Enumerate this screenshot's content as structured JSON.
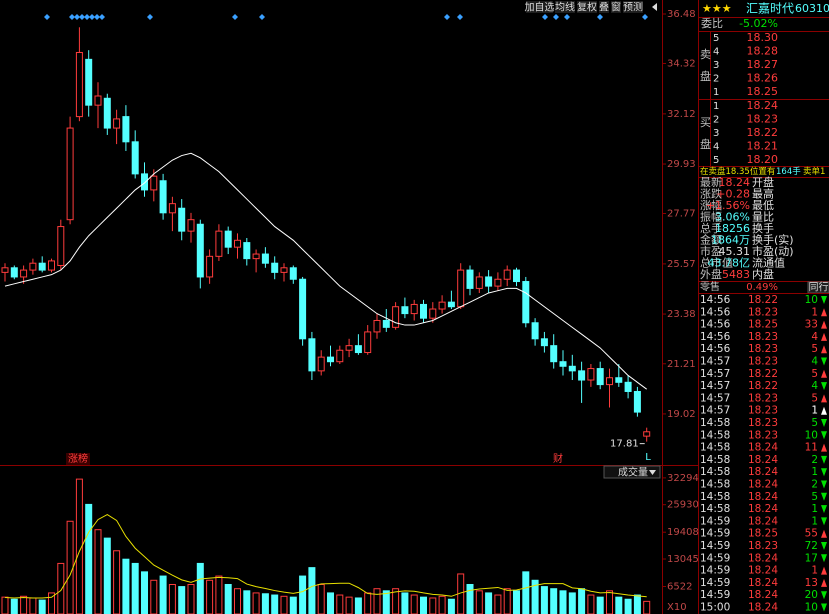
{
  "toolbar": [
    "加自选",
    "均线",
    "复权",
    "叠",
    "窗",
    "预测"
  ],
  "chart_data": {
    "type": "candlestick",
    "ylim": [
      16.79,
      36.48
    ],
    "yticks": [
      19.02,
      21.21,
      23.38,
      25.57,
      27.77,
      29.93,
      32.12,
      34.32,
      36.48
    ],
    "up_color": "#ff3c3c",
    "down_color": "#54ffff",
    "ohlc": [
      [
        25.2,
        25.6,
        24.8,
        25.4
      ],
      [
        25.4,
        25.5,
        24.9,
        25.0
      ],
      [
        25.0,
        25.5,
        24.7,
        25.3
      ],
      [
        25.3,
        25.8,
        25.1,
        25.6
      ],
      [
        25.6,
        25.9,
        25.2,
        25.3
      ],
      [
        25.3,
        25.8,
        25.2,
        25.7
      ],
      [
        25.5,
        27.5,
        25.3,
        27.2
      ],
      [
        27.5,
        32.0,
        27.3,
        31.5
      ],
      [
        32.0,
        35.9,
        31.8,
        34.8
      ],
      [
        34.5,
        34.9,
        32.0,
        32.5
      ],
      [
        32.5,
        33.5,
        31.5,
        32.9
      ],
      [
        32.8,
        33.0,
        31.2,
        31.5
      ],
      [
        31.5,
        32.3,
        30.8,
        31.9
      ],
      [
        32.0,
        32.5,
        30.5,
        30.9
      ],
      [
        30.9,
        31.4,
        29.3,
        29.5
      ],
      [
        29.5,
        30.0,
        28.5,
        28.8
      ],
      [
        28.8,
        29.7,
        28.3,
        29.4
      ],
      [
        29.2,
        29.5,
        27.5,
        27.8
      ],
      [
        27.8,
        28.5,
        27.0,
        28.2
      ],
      [
        28.0,
        28.4,
        26.6,
        27.0
      ],
      [
        27.0,
        27.8,
        26.5,
        27.5
      ],
      [
        27.3,
        27.5,
        24.5,
        25.0
      ],
      [
        25.0,
        26.2,
        24.7,
        25.9
      ],
      [
        25.9,
        27.3,
        25.7,
        27.0
      ],
      [
        27.0,
        27.2,
        26.0,
        26.3
      ],
      [
        26.3,
        26.9,
        25.8,
        26.6
      ],
      [
        26.5,
        26.7,
        25.5,
        25.8
      ],
      [
        25.8,
        26.2,
        25.2,
        26.0
      ],
      [
        26.0,
        26.3,
        25.4,
        25.6
      ],
      [
        25.6,
        25.9,
        24.9,
        25.2
      ],
      [
        25.2,
        25.6,
        24.8,
        25.4
      ],
      [
        25.4,
        25.5,
        24.7,
        24.9
      ],
      [
        24.9,
        25.0,
        22.0,
        22.3
      ],
      [
        22.3,
        22.6,
        20.5,
        20.9
      ],
      [
        20.9,
        21.8,
        20.7,
        21.5
      ],
      [
        21.5,
        22.0,
        21.1,
        21.3
      ],
      [
        21.3,
        22.0,
        21.2,
        21.8
      ],
      [
        21.8,
        22.3,
        21.5,
        22.0
      ],
      [
        22.0,
        22.5,
        21.6,
        21.7
      ],
      [
        21.7,
        22.9,
        21.6,
        22.6
      ],
      [
        22.6,
        23.4,
        22.3,
        23.1
      ],
      [
        23.1,
        23.6,
        22.6,
        22.8
      ],
      [
        22.8,
        23.9,
        22.7,
        23.7
      ],
      [
        23.7,
        24.1,
        23.2,
        23.4
      ],
      [
        23.4,
        24.0,
        23.1,
        23.8
      ],
      [
        23.8,
        24.0,
        23.0,
        23.2
      ],
      [
        23.2,
        23.9,
        23.0,
        23.6
      ],
      [
        23.6,
        24.2,
        23.4,
        23.9
      ],
      [
        23.9,
        24.4,
        23.6,
        23.7
      ],
      [
        23.7,
        25.6,
        23.6,
        25.3
      ],
      [
        25.3,
        25.5,
        24.2,
        24.5
      ],
      [
        24.5,
        25.2,
        24.3,
        25.0
      ],
      [
        25.0,
        25.3,
        24.3,
        24.6
      ],
      [
        24.6,
        25.2,
        24.4,
        24.9
      ],
      [
        24.9,
        25.5,
        24.6,
        25.3
      ],
      [
        25.3,
        25.4,
        24.6,
        24.8
      ],
      [
        24.8,
        25.0,
        22.8,
        23.0
      ],
      [
        23.0,
        23.2,
        22.0,
        22.3
      ],
      [
        22.3,
        22.6,
        21.7,
        22.0
      ],
      [
        22.0,
        22.5,
        21.0,
        21.3
      ],
      [
        21.3,
        21.8,
        20.7,
        21.1
      ],
      [
        21.1,
        21.6,
        20.5,
        20.9
      ],
      [
        20.9,
        21.3,
        19.5,
        20.5
      ],
      [
        20.5,
        21.2,
        20.2,
        21.0
      ],
      [
        21.0,
        21.3,
        20.1,
        20.3
      ],
      [
        20.3,
        21.0,
        19.3,
        20.6
      ],
      [
        20.6,
        21.2,
        20.2,
        20.4
      ],
      [
        20.4,
        20.7,
        19.7,
        20.0
      ],
      [
        20.0,
        20.2,
        18.9,
        19.1
      ],
      [
        18.05,
        18.42,
        17.81,
        18.24
      ]
    ],
    "ma": {
      "color": "#ffffff",
      "values": [
        24.6,
        24.7,
        24.8,
        24.9,
        25.0,
        25.1,
        25.3,
        25.7,
        26.3,
        26.8,
        27.2,
        27.6,
        28.0,
        28.4,
        28.8,
        29.1,
        29.5,
        29.8,
        30.1,
        30.3,
        30.4,
        30.2,
        29.9,
        29.6,
        29.2,
        28.8,
        28.4,
        28.0,
        27.6,
        27.2,
        26.9,
        26.6,
        26.2,
        25.8,
        25.4,
        25.0,
        24.6,
        24.3,
        24.0,
        23.7,
        23.4,
        23.2,
        23.0,
        22.9,
        22.9,
        23.0,
        23.1,
        23.3,
        23.5,
        23.7,
        23.9,
        24.1,
        24.3,
        24.4,
        24.5,
        24.5,
        24.3,
        24.0,
        23.7,
        23.4,
        23.1,
        22.8,
        22.5,
        22.2,
        21.9,
        21.5,
        21.1,
        20.7,
        20.4,
        20.1
      ]
    },
    "low_label": 17.81,
    "annotations": [
      "涨榜",
      "财",
      "L"
    ],
    "volume": {
      "title": "成交量",
      "ylim": [
        0,
        34400
      ],
      "yticks": [
        6522,
        13045,
        19408,
        25930,
        32294
      ],
      "unit_label": "X10",
      "values": [
        4000,
        3500,
        4200,
        3800,
        3300,
        5000,
        12000,
        22000,
        32000,
        26000,
        20000,
        18000,
        15000,
        13000,
        12000,
        10000,
        8000,
        9000,
        7000,
        6500,
        7000,
        12000,
        8000,
        9000,
        7000,
        6000,
        5500,
        5000,
        4800,
        4500,
        4200,
        4000,
        9000,
        11000,
        7000,
        5000,
        4500,
        4000,
        3800,
        5000,
        6000,
        5500,
        6000,
        5000,
        4500,
        4000,
        3800,
        4200,
        3500,
        9500,
        7000,
        5500,
        5000,
        4500,
        6000,
        5500,
        10000,
        8000,
        6500,
        6000,
        5500,
        5000,
        6000,
        4500,
        4000,
        5500,
        4000,
        3500,
        4500,
        3000
      ],
      "ma": {
        "color": "#e8e000",
        "values": [
          3900,
          3800,
          3900,
          3800,
          3800,
          3960,
          5560,
          9260,
          14860,
          19400,
          22400,
          23600,
          22200,
          18400,
          15600,
          13600,
          11600,
          10400,
          9200,
          8100,
          7500,
          8300,
          8500,
          8700,
          8600,
          8400,
          7100,
          6500,
          6060,
          5560,
          5200,
          4900,
          5300,
          6540,
          7140,
          7200,
          7300,
          7300,
          6260,
          4860,
          4660,
          4860,
          5260,
          5500,
          5400,
          5000,
          4660,
          4500,
          4200,
          5000,
          5600,
          5940,
          6100,
          6300,
          5600,
          5700,
          6200,
          6800,
          7200,
          7200,
          7200,
          6200,
          6000,
          5400,
          5000,
          5100,
          4800,
          4500,
          4300,
          4100
        ]
      }
    }
  },
  "quote": {
    "stars": "★★★",
    "name": "汇嘉时代",
    "code": "603101",
    "ratio_label": "委比",
    "ratio": "-5.02%",
    "sell_label": [
      "卖",
      "盘"
    ],
    "buy_label": [
      "买",
      "盘"
    ],
    "sell": [
      {
        "level": 5,
        "price": "18.30"
      },
      {
        "level": 4,
        "price": "18.28"
      },
      {
        "level": 3,
        "price": "18.27"
      },
      {
        "level": 2,
        "price": "18.26"
      },
      {
        "level": 1,
        "price": "18.25"
      }
    ],
    "buy": [
      {
        "level": 1,
        "price": "18.24"
      },
      {
        "level": 2,
        "price": "18.23"
      },
      {
        "level": 3,
        "price": "18.22"
      },
      {
        "level": 4,
        "price": "18.21"
      },
      {
        "level": 5,
        "price": "18.20"
      }
    ],
    "notice": "在卖盘18.35位置有",
    "notice_qty": "164手",
    "notice_tail": "卖单1",
    "stats": [
      {
        "label": "最新",
        "value": "18.24",
        "tag": "开盘",
        "color": "#ff3c3c"
      },
      {
        "label": "涨跌",
        "value": "+0.28",
        "tag": "最高",
        "color": "#ff3c3c"
      },
      {
        "label": "涨幅",
        "value": "+1.56%",
        "tag": "最低",
        "color": "#ff3c3c"
      },
      {
        "label": "振幅",
        "value": "3.06%",
        "tag": "量比",
        "color": "#54ffff"
      },
      {
        "label": "总手",
        "value": "18256",
        "tag": "换手",
        "color": "#54ffff"
      },
      {
        "label": "金额",
        "value": "1864万",
        "tag": "换手(实)",
        "color": "#54ffff"
      },
      {
        "label": "市盈",
        "value": "45.31",
        "tag": "市盈(动)",
        "color": "#e0e0e0"
      },
      {
        "label": "总市值",
        "value": "43.78亿",
        "tag": "流通值",
        "color": "#54ffff"
      },
      {
        "label": "外盘",
        "value": "5483",
        "tag": "内盘",
        "color": "#ff3c3c"
      }
    ],
    "retail_label": "零售",
    "retail": "0.49%",
    "peer": "同行",
    "ticks": [
      {
        "time": "14:56",
        "price": "18.22",
        "vol": 10,
        "dir": "down"
      },
      {
        "time": "14:56",
        "price": "18.23",
        "vol": 1,
        "dir": "up"
      },
      {
        "time": "14:56",
        "price": "18.25",
        "vol": 33,
        "dir": "up"
      },
      {
        "time": "14:56",
        "price": "18.23",
        "vol": 4,
        "dir": "up"
      },
      {
        "time": "14:56",
        "price": "18.23",
        "vol": 5,
        "dir": "up"
      },
      {
        "time": "14:57",
        "price": "18.23",
        "vol": 4,
        "dir": "down"
      },
      {
        "time": "14:57",
        "price": "18.22",
        "vol": 5,
        "dir": "up"
      },
      {
        "time": "14:57",
        "price": "18.22",
        "vol": 4,
        "dir": "down"
      },
      {
        "time": "14:57",
        "price": "18.23",
        "vol": 5,
        "dir": "up"
      },
      {
        "time": "14:57",
        "price": "18.23",
        "vol": 1,
        "dir": "neutral"
      },
      {
        "time": "14:58",
        "price": "18.23",
        "vol": 5,
        "dir": "down"
      },
      {
        "time": "14:58",
        "price": "18.23",
        "vol": 10,
        "dir": "down"
      },
      {
        "time": "14:58",
        "price": "18.24",
        "vol": 11,
        "dir": "up"
      },
      {
        "time": "14:58",
        "price": "18.24",
        "vol": 2,
        "dir": "down"
      },
      {
        "time": "14:58",
        "price": "18.24",
        "vol": 1,
        "dir": "down"
      },
      {
        "time": "14:58",
        "price": "18.24",
        "vol": 2,
        "dir": "down"
      },
      {
        "time": "14:58",
        "price": "18.24",
        "vol": 5,
        "dir": "down"
      },
      {
        "time": "14:58",
        "price": "18.24",
        "vol": 1,
        "dir": "down"
      },
      {
        "time": "14:59",
        "price": "18.24",
        "vol": 1,
        "dir": "down"
      },
      {
        "time": "14:59",
        "price": "18.25",
        "vol": 55,
        "dir": "up"
      },
      {
        "time": "14:59",
        "price": "18.23",
        "vol": 72,
        "dir": "down"
      },
      {
        "time": "14:59",
        "price": "18.24",
        "vol": 17,
        "dir": "down"
      },
      {
        "time": "14:59",
        "price": "18.24",
        "vol": 1,
        "dir": "up"
      },
      {
        "time": "14:59",
        "price": "18.24",
        "vol": 13,
        "dir": "up"
      },
      {
        "time": "14:59",
        "price": "18.24",
        "vol": 20,
        "dir": "down"
      },
      {
        "time": "15:00",
        "price": "18.24",
        "vol": 10,
        "dir": "down"
      }
    ]
  }
}
